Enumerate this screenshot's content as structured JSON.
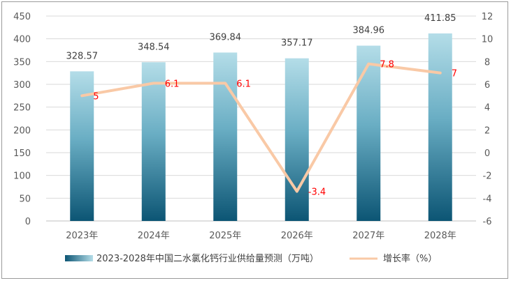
{
  "chart_data": {
    "type": "bar+line",
    "categories": [
      "2023年",
      "2024年",
      "2025年",
      "2026年",
      "2027年",
      "2028年"
    ],
    "series": [
      {
        "name": "2023-2028年中国二水氯化钙行业供给量预测（万吨）",
        "type": "bar",
        "axis": "left",
        "values": [
          328.57,
          348.54,
          369.84,
          357.17,
          384.96,
          411.85
        ],
        "labels": [
          "328.57",
          "348.54",
          "369.84",
          "357.17",
          "384.96",
          "411.85"
        ]
      },
      {
        "name": "增长率（%）",
        "type": "line",
        "axis": "right",
        "values": [
          5,
          6.1,
          6.1,
          -3.4,
          7.8,
          7
        ],
        "labels": [
          "5",
          "6.1",
          "6.1",
          "-3.4",
          "7.8",
          "7"
        ]
      }
    ],
    "y_left": {
      "min": 0,
      "max": 450,
      "step": 50,
      "ticks": [
        "0",
        "50",
        "100",
        "150",
        "200",
        "250",
        "300",
        "350",
        "400",
        "450"
      ]
    },
    "y_right": {
      "min": -6,
      "max": 12,
      "step": 2,
      "ticks": [
        "-6",
        "-4",
        "-2",
        "0",
        "2",
        "4",
        "6",
        "8",
        "10",
        "12"
      ]
    },
    "grid": true,
    "legend_position": "bottom",
    "colors": {
      "bar_top": "#b4dde8",
      "bar_bottom": "#0c5574",
      "line": "#f9c9a6",
      "rate_label": "#ff0000",
      "grid": "#d9d9d9"
    }
  }
}
